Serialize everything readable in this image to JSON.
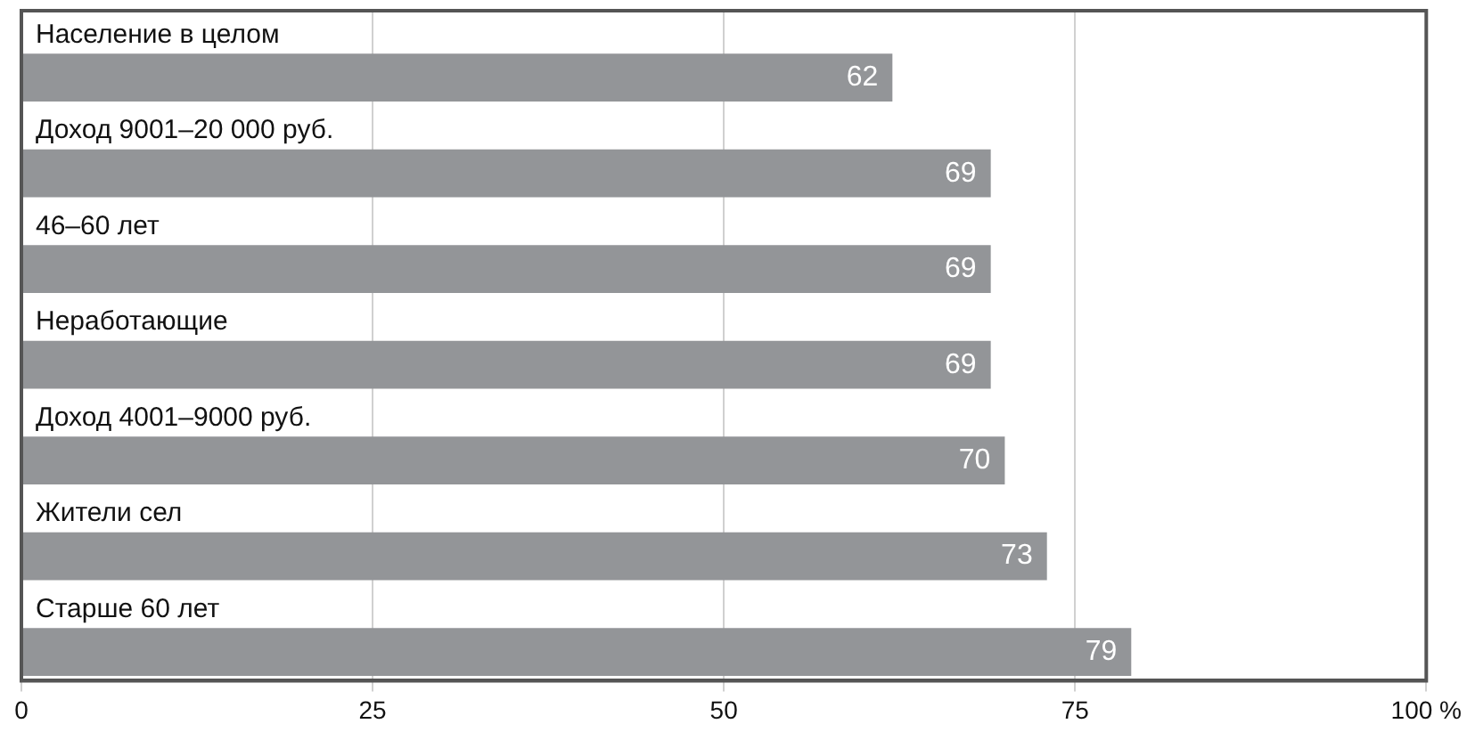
{
  "chart_data": {
    "type": "bar",
    "orientation": "horizontal",
    "categories": [
      "Население в целом",
      "Доход 9001–20 000 руб.",
      "46–60 лет",
      "Неработающие",
      "Доход 4001–9000 руб.",
      "Жители сел",
      "Старше 60 лет"
    ],
    "values": [
      62,
      69,
      69,
      69,
      70,
      73,
      79
    ],
    "color": "#939598",
    "xlim": [
      0,
      100
    ],
    "xticks": [
      0,
      25,
      50,
      75,
      {
        "value": 100,
        "label": "100 %"
      }
    ],
    "grid": "x",
    "data_labels": true
  }
}
